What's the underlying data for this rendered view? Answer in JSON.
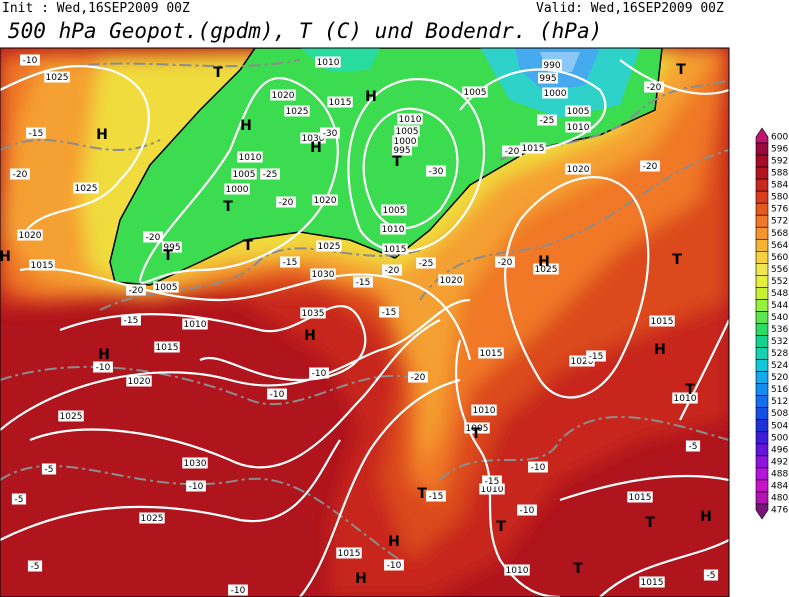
{
  "header": {
    "init": "Init : Wed,16SEP2009 00Z",
    "valid": "Valid: Wed,16SEP2009 00Z",
    "title": "500 hPa Geopot.(gpdm), T (C) und Bodendr. (hPa)"
  },
  "map": {
    "isobar_labels": [
      "1025",
      "1010",
      "1020",
      "1015",
      "1025",
      "1030",
      "1010",
      "1005",
      "1000",
      "995",
      "1010",
      "1005",
      "1000",
      "1020",
      "1005",
      "1010",
      "1015",
      "1025",
      "1030",
      "1020",
      "995",
      "1005",
      "1010",
      "1015",
      "1035",
      "1020",
      "1025",
      "1030",
      "1025",
      "1015",
      "1010",
      "1015",
      "1015",
      "1020",
      "1015",
      "1010",
      "1005",
      "1010",
      "1020",
      "1025",
      "1015",
      "1010",
      "1005",
      "1000",
      "995",
      "990",
      "1005",
      "1015",
      "1020",
      "1015",
      "1025",
      "1010"
    ],
    "temperature_labels": [
      "-10",
      "-15",
      "-20",
      "-20",
      "-15",
      "-10",
      "-10",
      "-10",
      "-10",
      "-5",
      "-5",
      "-5",
      "-10",
      "-5",
      "-5",
      "-10",
      "-10",
      "-15",
      "-15",
      "-15",
      "-20",
      "-15",
      "-15",
      "-20",
      "-25",
      "-20",
      "-20",
      "-25",
      "-20",
      "-20",
      "-30",
      "-25",
      "-20",
      "-15",
      "-20",
      "-10",
      "-30"
    ],
    "centers": [
      "H",
      "H",
      "H",
      "H",
      "T",
      "T",
      "T",
      "T",
      "T",
      "H",
      "H",
      "H",
      "T",
      "T",
      "H",
      "T",
      "T",
      "T",
      "H",
      "H",
      "T",
      "T",
      "T",
      "H",
      "H"
    ]
  },
  "colorbar": {
    "levels": [
      600,
      596,
      592,
      588,
      584,
      580,
      576,
      572,
      568,
      564,
      560,
      556,
      552,
      548,
      544,
      540,
      536,
      532,
      528,
      524,
      520,
      516,
      512,
      508,
      504,
      500,
      496,
      492,
      488,
      484,
      480,
      476
    ],
    "colors": [
      "#c0146e",
      "#9c0a3c",
      "#a80a28",
      "#b4141e",
      "#c8281e",
      "#dc3c1e",
      "#e65a1e",
      "#f07828",
      "#f5962d",
      "#f5b432",
      "#f5d23c",
      "#f0e650",
      "#e6f03c",
      "#c8f032",
      "#96f03c",
      "#5ae650",
      "#28dc64",
      "#14d28c",
      "#14d2b4",
      "#14c8dc",
      "#14aaf0",
      "#148cf0",
      "#146ef0",
      "#1450e6",
      "#1e32dc",
      "#3c1edc",
      "#6414dc",
      "#8c14dc",
      "#b414dc",
      "#c814c8",
      "#b414b4",
      "#781478"
    ]
  }
}
